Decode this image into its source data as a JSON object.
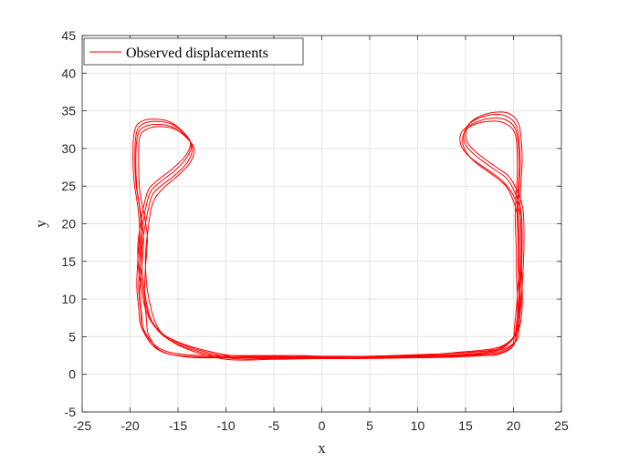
{
  "chart_data": {
    "type": "line",
    "xlabel": "x",
    "ylabel": "y",
    "xlim": [
      -25,
      25
    ],
    "ylim": [
      -5,
      45
    ],
    "xticks": [
      -25,
      -20,
      -15,
      -10,
      -5,
      0,
      5,
      10,
      15,
      20,
      25
    ],
    "yticks": [
      -5,
      0,
      5,
      10,
      15,
      20,
      25,
      30,
      35,
      40,
      45
    ],
    "grid": true,
    "legend_position": "top-left",
    "series": [
      {
        "name": "Observed displacements",
        "color": "#ff0000",
        "laps": [
          {
            "x": [
              -2,
              -8,
              -14,
              -17,
              -18.5,
              -18.8,
              -19.0,
              -18.8,
              -18.6,
              -18.9,
              -19.3,
              -19.4,
              -19.2,
              -18.5,
              -17,
              -15.5,
              -14,
              -13.5,
              -14,
              -15.2,
              -16.6,
              -17.6,
              -18.0,
              -18.4,
              -18.8,
              -18.5,
              -17.5,
              -15,
              -10,
              -5,
              0,
              5,
              10,
              14,
              17.5,
              19.2,
              20.3,
              20.6,
              20.6,
              20.5,
              20.5,
              20.4,
              20.4,
              20.5,
              20.6,
              20.3,
              19.2,
              17.5,
              15.8,
              14.6,
              14.5,
              15.5,
              17.5,
              19,
              20.1,
              20.7,
              20.8,
              20.7,
              20.5,
              20.3,
              20.2,
              19.8,
              18.5,
              17,
              14,
              10,
              5,
              0,
              -2
            ],
            "y": [
              2.3,
              2.3,
              2.4,
              3.2,
              5.5,
              8,
              11,
              14,
              18,
              21.5,
              25,
              29,
              31.8,
              32.9,
              33.2,
              32.8,
              31.3,
              30,
              28.2,
              26.6,
              25.2,
              24,
              22.5,
              20,
              16,
              11,
              6.5,
              4,
              2.2,
              2.1,
              2.2,
              2.2,
              2.4,
              2.6,
              3.0,
              3.8,
              5.5,
              8,
              11,
              14,
              17,
              20,
              22.5,
              25,
              28,
              32.2,
              33.8,
              34,
              33.3,
              32.2,
              30.5,
              28.8,
              27,
              25.5,
              23.5,
              21,
              17,
              13,
              9,
              6.5,
              4.5,
              3.6,
              2.8,
              2.6,
              2.4,
              2.3,
              2.2,
              2.2,
              2.3
            ]
          },
          {
            "x": [
              -2,
              -8,
              -13,
              -16.5,
              -18,
              -18.3,
              -18.5,
              -18.4,
              -18.2,
              -18.5,
              -19.0,
              -19.1,
              -19.0,
              -18.2,
              -16.8,
              -15.2,
              -13.8,
              -13.3,
              -13.8,
              -15.0,
              -16.3,
              -17.3,
              -17.8,
              -18.1,
              -18.4,
              -18.1,
              -17.0,
              -14.5,
              -10,
              -5,
              0,
              5,
              10,
              14,
              17.3,
              19.0,
              20.1,
              20.4,
              20.4,
              20.3,
              20.3,
              20.2,
              20.2,
              20.3,
              20.4,
              20.2,
              19.0,
              17.3,
              15.6,
              14.8,
              14.8,
              15.8,
              17.7,
              19.2,
              20.0,
              20.5,
              20.6,
              20.5,
              20.3,
              20.1,
              20.0,
              19.6,
              18.3,
              16.8,
              14,
              10,
              5,
              0,
              -2
            ],
            "y": [
              2.1,
              2.2,
              2.3,
              2.9,
              5.0,
              7.5,
              10.5,
              14,
              18,
              21,
              24.5,
              28.5,
              31.5,
              32.6,
              32.9,
              32.5,
              31.0,
              29.8,
              28.0,
              26.4,
              25.0,
              23.6,
              22.0,
              19.5,
              15.5,
              10.5,
              6.0,
              3.6,
              2.0,
              2.0,
              2.1,
              2.1,
              2.3,
              2.5,
              2.8,
              3.6,
              5.2,
              7.5,
              10.5,
              13.5,
              16.5,
              19.5,
              22,
              24.5,
              27.5,
              31.8,
              33.4,
              33.6,
              33.0,
              31.9,
              30.2,
              28.4,
              26.6,
              25.0,
              23.0,
              20.5,
              16.5,
              12.5,
              8.8,
              6.2,
              4.2,
              3.3,
              2.6,
              2.5,
              2.3,
              2.2,
              2.1,
              2.1,
              2.1
            ]
          },
          {
            "x": [
              -2,
              -8,
              -14,
              -17,
              -18.6,
              -18.9,
              -19.1,
              -19.0,
              -18.8,
              -19.0,
              -19.4,
              -19.5,
              -19.3,
              -18.6,
              -17.2,
              -15.6,
              -14.2,
              -13.6,
              -14.2,
              -15.4,
              -16.8,
              -17.8,
              -18.2,
              -18.6,
              -19.0,
              -18.7,
              -17.7,
              -15.2,
              -10,
              -5,
              0,
              5,
              10,
              14,
              17.6,
              19.3,
              20.4,
              20.7,
              20.7,
              20.6,
              20.6,
              20.5,
              20.5,
              20.6,
              20.7,
              20.4,
              19.4,
              17.8,
              16.0,
              15.0,
              14.9,
              15.9,
              17.8,
              19.3,
              20.2,
              20.8,
              20.9,
              20.8,
              20.6,
              20.4,
              20.3,
              19.9,
              18.6,
              17.1,
              14,
              10,
              5,
              0,
              -2
            ],
            "y": [
              2.5,
              2.5,
              2.6,
              3.5,
              6.0,
              8.5,
              11.5,
              14.5,
              18.5,
              22,
              25.5,
              29.5,
              32.2,
              33.3,
              33.6,
              33.2,
              31.7,
              30.3,
              28.6,
              27.0,
              25.6,
              24.4,
              23.0,
              20.5,
              16.5,
              11.5,
              7.0,
              4.3,
              2.4,
              2.3,
              2.4,
              2.4,
              2.6,
              2.8,
              3.2,
              4.0,
              5.8,
              8.5,
              11.5,
              14.5,
              17.5,
              20.5,
              23,
              25.5,
              28.5,
              32.6,
              34.2,
              34.5,
              33.8,
              32.6,
              30.8,
              29.2,
              27.4,
              26.0,
              24.0,
              21.5,
              17.5,
              13.5,
              9.4,
              6.8,
              4.8,
              3.9,
              3.0,
              2.8,
              2.6,
              2.5,
              2.4,
              2.4,
              2.5
            ]
          },
          {
            "x": [
              -2,
              -8,
              -14,
              -17.2,
              -18.8,
              -19.1,
              -19.3,
              -19.2,
              -19.0,
              -19.2,
              -19.6,
              -19.7,
              -19.5,
              -18.8,
              -17.4,
              -15.8,
              -14.3,
              -13.7,
              -14.3,
              -15.6,
              -17.0,
              -18.0,
              -18.4,
              -18.8,
              -19.2,
              -18.9,
              -17.9,
              -15.4,
              -10,
              -5,
              0,
              5,
              10,
              14,
              17.8,
              19.5,
              20.6,
              20.9,
              20.9,
              20.8,
              20.8,
              20.7,
              20.7,
              20.8,
              20.9,
              20.6,
              19.6,
              18.0,
              16.2,
              15.2,
              15.1,
              16.1,
              18.0,
              19.5,
              20.4,
              21.0,
              21.1,
              21.0,
              20.8,
              20.6,
              20.5,
              20.1,
              18.8,
              17.3,
              14,
              10,
              5,
              0,
              -2
            ],
            "y": [
              2.2,
              2.2,
              2.3,
              3.4,
              6.2,
              8.8,
              11.8,
              15,
              19,
              22.3,
              25.8,
              29.8,
              32.5,
              33.6,
              33.9,
              33.5,
              32.0,
              30.6,
              28.9,
              27.3,
              25.9,
              24.7,
              23.3,
              20.8,
              16.8,
              11.8,
              7.2,
              4.5,
              2.6,
              2.4,
              2.3,
              2.3,
              2.5,
              2.9,
              3.4,
              4.3,
              6.2,
              9.0,
              12,
              15,
              18,
              21,
              23.5,
              26,
              29,
              33.0,
              34.6,
              34.8,
              34.1,
              32.9,
              31.1,
              29.5,
              27.7,
              26.3,
              24.3,
              21.8,
              17.8,
              13.8,
              9.7,
              7.1,
              5.1,
              4.2,
              3.3,
              3.1,
              2.8,
              2.6,
              2.4,
              2.3,
              2.2
            ]
          }
        ]
      }
    ]
  }
}
